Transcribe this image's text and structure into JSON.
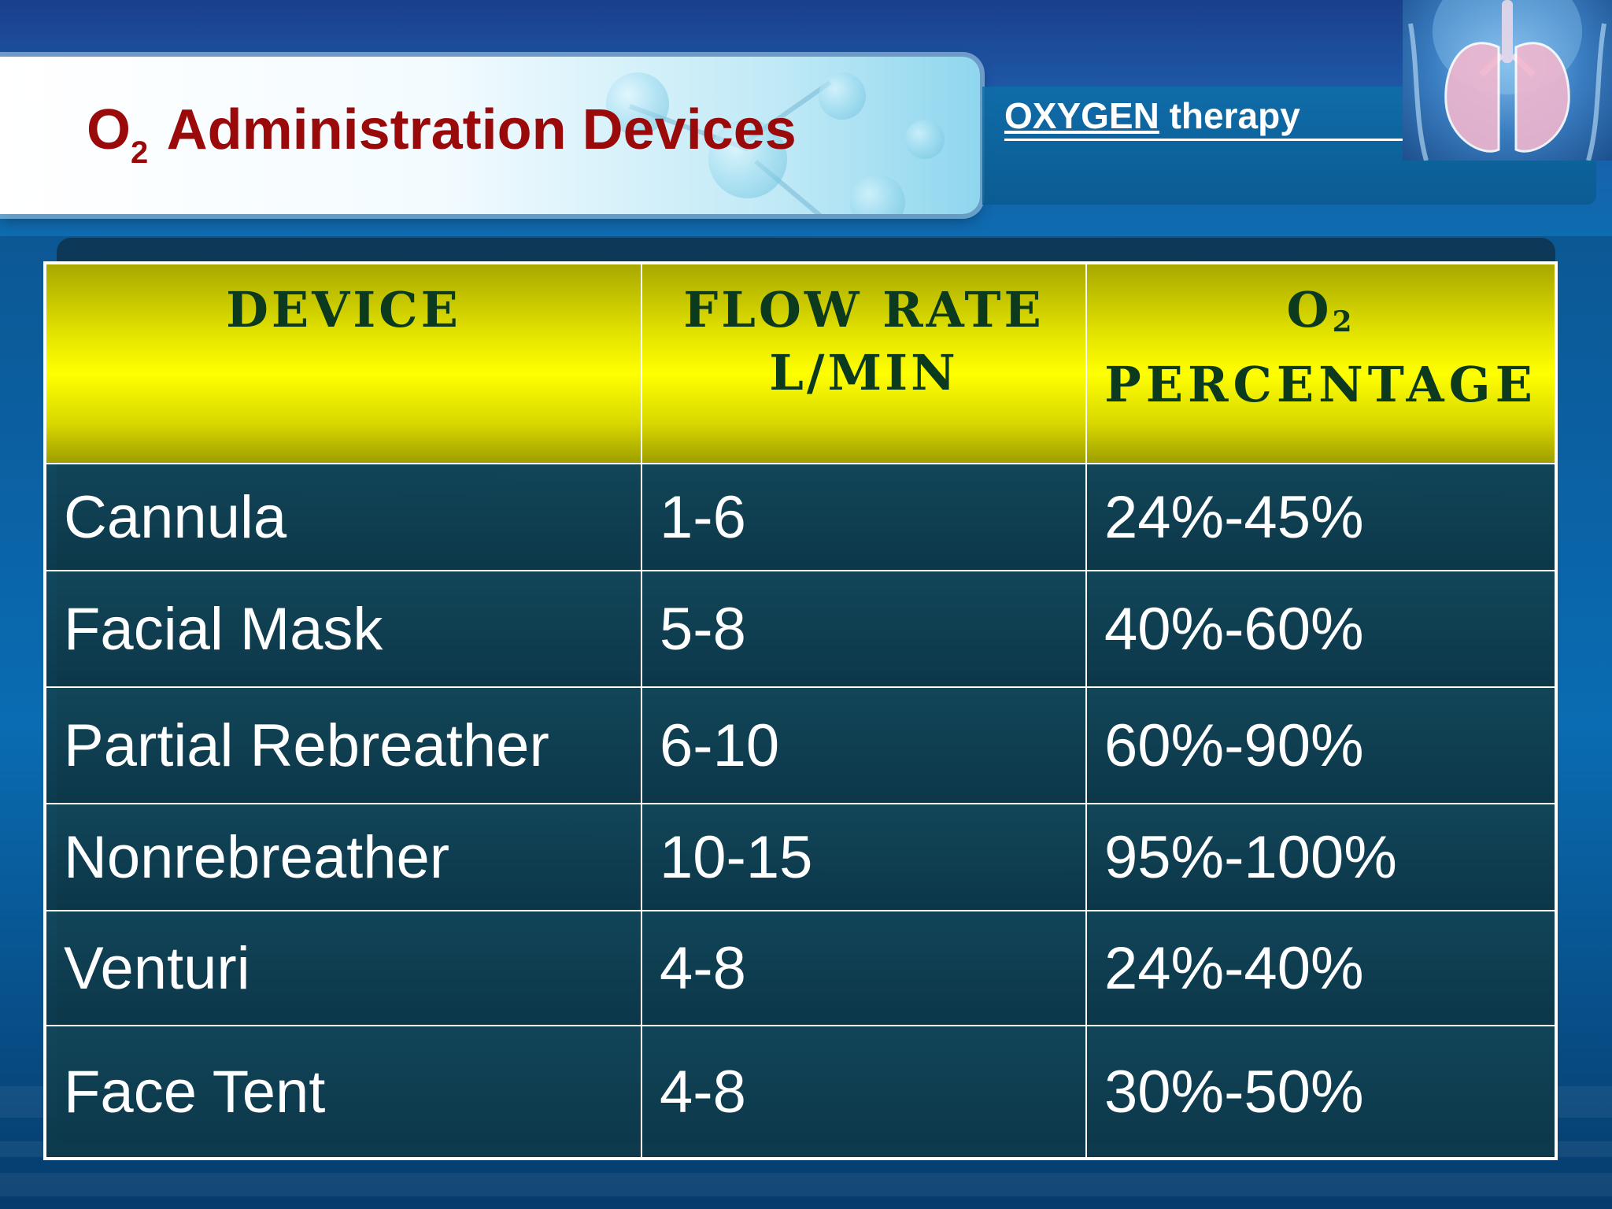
{
  "slide": {
    "title_main": "O",
    "title_sub": "2",
    "title_rest": " Administration Devices",
    "subtitle_underlined": "OXYGEN",
    "subtitle_rest": " therapy"
  },
  "table": {
    "headers": {
      "device": "DEVICE",
      "flow_rate_line1": "FLOW RATE",
      "flow_rate_line2": "L/MIN",
      "o2_main": "O",
      "o2_sub": "2",
      "percentage": "PERCENTAGE"
    },
    "rows": [
      {
        "device": "Cannula",
        "flow_rate": "1-6",
        "o2_percentage": "24%-45%"
      },
      {
        "device": "Facial Mask",
        "flow_rate": "5-8",
        "o2_percentage": "40%-60%"
      },
      {
        "device": "Partial Rebreather",
        "flow_rate": "6-10",
        "o2_percentage": "60%-90%"
      },
      {
        "device": "Nonrebreather",
        "flow_rate": "10-15",
        "o2_percentage": "95%-100%"
      },
      {
        "device": "Venturi",
        "flow_rate": "4-8",
        "o2_percentage": "24%-40%"
      },
      {
        "device": "Face Tent",
        "flow_rate": "4-8",
        "o2_percentage": "30%-50%"
      }
    ]
  },
  "images": {
    "lungs": "lungs-illustration",
    "molecule": "molecule-graphic"
  },
  "colors": {
    "title": "#9b0a0a",
    "header_fill": "#ffff00",
    "header_text": "#0c3a1e",
    "cell_fill": "#124658",
    "background": "#0b5fa0"
  }
}
